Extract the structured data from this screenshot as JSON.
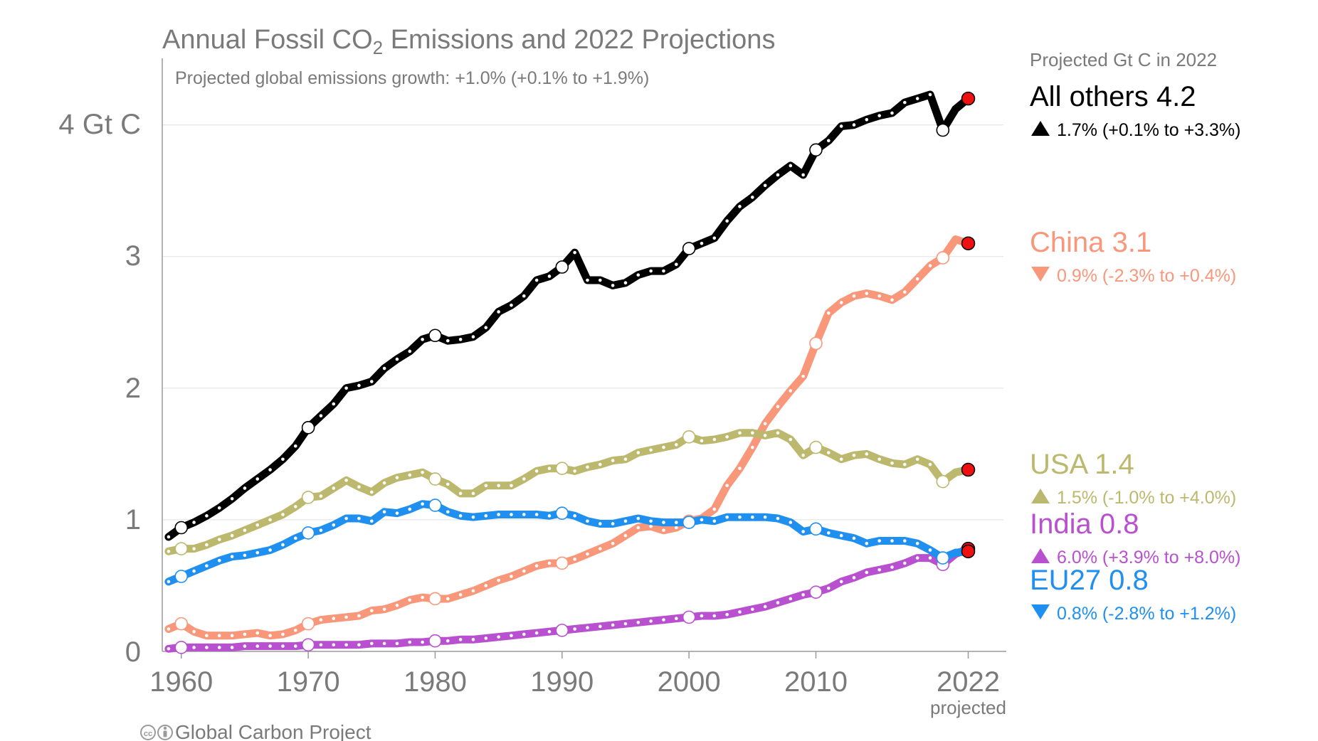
{
  "chart_data": {
    "type": "line",
    "title_prefix": "Annual Fossil CO",
    "title_sub": "2",
    "title_suffix": " Emissions and 2022 Projections",
    "subtitle": "Projected global emissions growth: +1.0% (+0.1% to +1.9%)",
    "y_unit_label": "4 Gt C",
    "y_ticks": [
      "0",
      "1",
      "2",
      "3"
    ],
    "x_ticks": [
      "1960",
      "1970",
      "1980",
      "1990",
      "2000",
      "2010",
      "2022"
    ],
    "x_note": "projected",
    "ylim": [
      0,
      4.5
    ],
    "xlim": [
      1958.5,
      2025
    ],
    "grid": true,
    "legend_header": "Projected Gt C in 2022",
    "credit": "Global Carbon Project",
    "x": [
      1959,
      1960,
      1961,
      1962,
      1963,
      1964,
      1965,
      1966,
      1967,
      1968,
      1969,
      1970,
      1971,
      1972,
      1973,
      1974,
      1975,
      1976,
      1977,
      1978,
      1979,
      1980,
      1981,
      1982,
      1983,
      1984,
      1985,
      1986,
      1987,
      1988,
      1989,
      1990,
      1991,
      1992,
      1993,
      1994,
      1995,
      1996,
      1997,
      1998,
      1999,
      2000,
      2001,
      2002,
      2003,
      2004,
      2005,
      2006,
      2007,
      2008,
      2009,
      2010,
      2011,
      2012,
      2013,
      2014,
      2015,
      2016,
      2017,
      2018,
      2019,
      2020,
      2021
    ],
    "projection_year": 2022,
    "series": [
      {
        "name": "All others",
        "value_label": "4.2",
        "change_label": "1.7% (+0.1% to +3.3%)",
        "direction": "up",
        "color": "#000000",
        "values": [
          0.87,
          0.94,
          0.98,
          1.03,
          1.09,
          1.16,
          1.24,
          1.31,
          1.38,
          1.46,
          1.56,
          1.7,
          1.79,
          1.88,
          2.0,
          2.02,
          2.05,
          2.15,
          2.22,
          2.28,
          2.37,
          2.4,
          2.36,
          2.37,
          2.39,
          2.46,
          2.58,
          2.63,
          2.7,
          2.82,
          2.85,
          2.92,
          3.03,
          2.82,
          2.82,
          2.78,
          2.8,
          2.86,
          2.89,
          2.89,
          2.94,
          3.06,
          3.1,
          3.14,
          3.27,
          3.38,
          3.45,
          3.54,
          3.62,
          3.69,
          3.62,
          3.81,
          3.88,
          3.99,
          4.0,
          4.04,
          4.07,
          4.09,
          4.17,
          4.2,
          4.23,
          3.96,
          4.12
        ],
        "projected": 4.2
      },
      {
        "name": "China",
        "value_label": "3.1",
        "change_label": "0.9% (-2.3% to +0.4%)",
        "direction": "down",
        "color": "#f9977b",
        "values": [
          0.17,
          0.21,
          0.15,
          0.12,
          0.12,
          0.12,
          0.13,
          0.14,
          0.12,
          0.13,
          0.16,
          0.21,
          0.24,
          0.25,
          0.26,
          0.27,
          0.31,
          0.32,
          0.35,
          0.39,
          0.41,
          0.4,
          0.4,
          0.43,
          0.46,
          0.5,
          0.54,
          0.57,
          0.61,
          0.65,
          0.67,
          0.67,
          0.7,
          0.74,
          0.78,
          0.82,
          0.88,
          0.94,
          0.95,
          0.92,
          0.94,
          0.99,
          1.01,
          1.08,
          1.26,
          1.39,
          1.55,
          1.73,
          1.86,
          1.98,
          2.09,
          2.34,
          2.57,
          2.65,
          2.7,
          2.72,
          2.7,
          2.67,
          2.73,
          2.83,
          2.93,
          2.99,
          3.13
        ],
        "projected": 3.1
      },
      {
        "name": "USA",
        "value_label": "1.4",
        "change_label": "1.5% (-1.0% to +4.0%)",
        "direction": "up",
        "color": "#bcb86d",
        "values": [
          0.76,
          0.78,
          0.78,
          0.81,
          0.85,
          0.88,
          0.92,
          0.96,
          1.0,
          1.04,
          1.1,
          1.17,
          1.18,
          1.24,
          1.3,
          1.25,
          1.21,
          1.28,
          1.32,
          1.34,
          1.36,
          1.31,
          1.27,
          1.2,
          1.2,
          1.26,
          1.26,
          1.26,
          1.31,
          1.37,
          1.39,
          1.39,
          1.37,
          1.4,
          1.42,
          1.45,
          1.46,
          1.51,
          1.53,
          1.55,
          1.57,
          1.63,
          1.6,
          1.61,
          1.63,
          1.66,
          1.66,
          1.64,
          1.66,
          1.61,
          1.49,
          1.55,
          1.51,
          1.46,
          1.49,
          1.5,
          1.46,
          1.43,
          1.42,
          1.46,
          1.42,
          1.29,
          1.36
        ],
        "projected": 1.38
      },
      {
        "name": "India",
        "value_label": "0.8",
        "change_label": "6.0% (+3.9% to +8.0%)",
        "direction": "up",
        "color": "#b850d0",
        "values": [
          0.02,
          0.03,
          0.03,
          0.03,
          0.03,
          0.03,
          0.04,
          0.04,
          0.04,
          0.04,
          0.04,
          0.05,
          0.05,
          0.05,
          0.05,
          0.05,
          0.06,
          0.06,
          0.06,
          0.07,
          0.07,
          0.08,
          0.08,
          0.09,
          0.09,
          0.1,
          0.11,
          0.12,
          0.13,
          0.14,
          0.15,
          0.16,
          0.17,
          0.18,
          0.19,
          0.2,
          0.21,
          0.22,
          0.23,
          0.24,
          0.25,
          0.26,
          0.27,
          0.27,
          0.28,
          0.3,
          0.32,
          0.34,
          0.37,
          0.4,
          0.43,
          0.45,
          0.48,
          0.53,
          0.56,
          0.6,
          0.62,
          0.64,
          0.67,
          0.71,
          0.71,
          0.66,
          0.74
        ],
        "projected": 0.78
      },
      {
        "name": "EU27",
        "value_label": "0.8",
        "change_label": "0.8% (-2.8% to +1.2%)",
        "direction": "down",
        "color": "#1f8ff0",
        "values": [
          0.53,
          0.57,
          0.61,
          0.65,
          0.69,
          0.72,
          0.73,
          0.75,
          0.77,
          0.81,
          0.86,
          0.9,
          0.92,
          0.96,
          1.01,
          1.01,
          0.99,
          1.06,
          1.05,
          1.08,
          1.12,
          1.11,
          1.06,
          1.03,
          1.02,
          1.03,
          1.04,
          1.04,
          1.04,
          1.04,
          1.03,
          1.05,
          1.03,
          0.99,
          0.97,
          0.97,
          0.99,
          1.01,
          0.99,
          0.98,
          0.98,
          0.98,
          1.0,
          0.99,
          1.02,
          1.02,
          1.02,
          1.02,
          1.01,
          0.98,
          0.91,
          0.93,
          0.9,
          0.88,
          0.86,
          0.82,
          0.84,
          0.84,
          0.84,
          0.82,
          0.77,
          0.71,
          0.75
        ],
        "projected": 0.76
      }
    ]
  }
}
